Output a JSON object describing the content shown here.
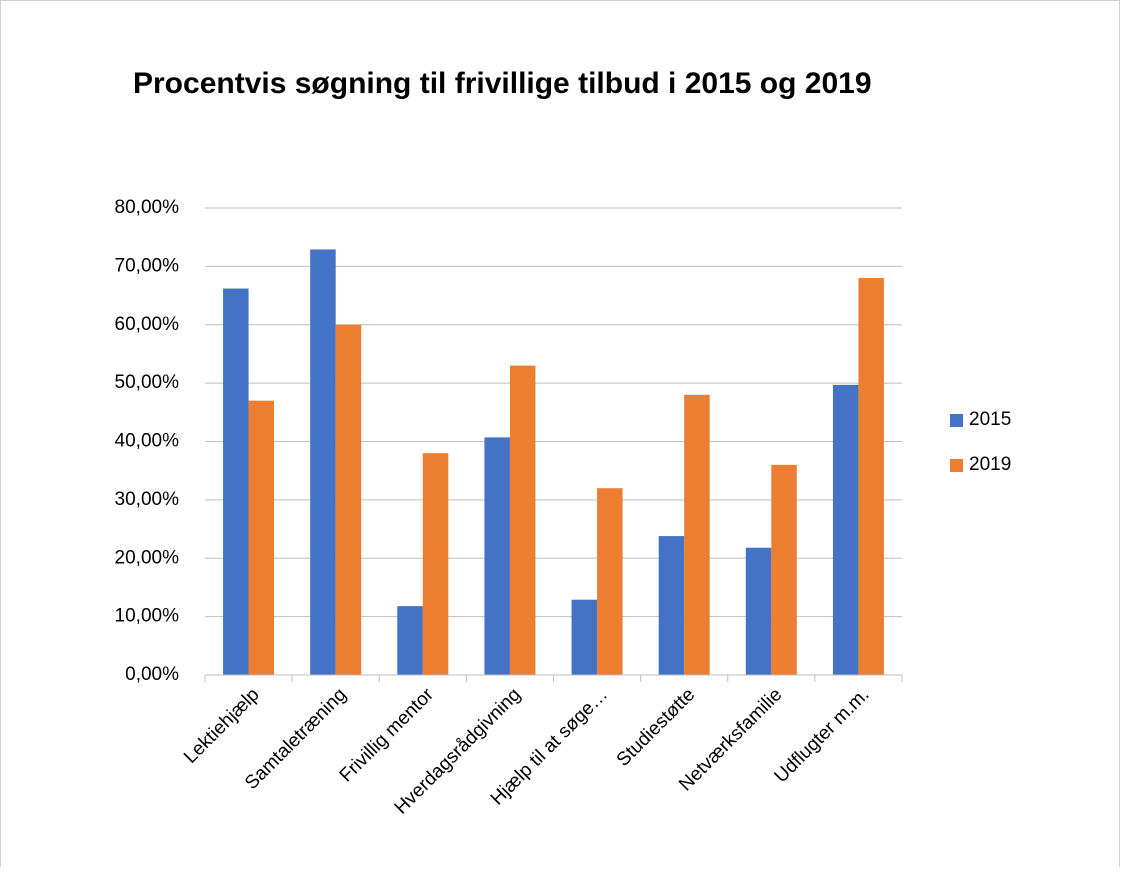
{
  "chart_data": {
    "type": "bar",
    "title": "Procentvis søgning til frivillige tilbud i 2015 og 2019",
    "categories": [
      "Lektiehjælp",
      "Samtaletræning",
      "Frivillig mentor",
      "Hverdagsrådgivning",
      "Hjælp til at søge…",
      "Studiestøtte",
      "Netværksfamilie",
      "Udflugter m.m."
    ],
    "series": [
      {
        "name": "2015",
        "color": "#4472c4",
        "values": [
          66.2,
          72.9,
          11.8,
          40.7,
          12.9,
          23.8,
          21.8,
          49.7
        ]
      },
      {
        "name": "2019",
        "color": "#ed7d31",
        "values": [
          47,
          60,
          38,
          53,
          32,
          48,
          36,
          68
        ]
      }
    ],
    "ylim": [
      0,
      80
    ],
    "yticks": [
      {
        "value": 0,
        "label": "0,00%"
      },
      {
        "value": 10,
        "label": "10,00%"
      },
      {
        "value": 20,
        "label": "20,00%"
      },
      {
        "value": 30,
        "label": "30,00%"
      },
      {
        "value": 40,
        "label": "40,00%"
      },
      {
        "value": 50,
        "label": "50,00%"
      },
      {
        "value": 60,
        "label": "60,00%"
      },
      {
        "value": 70,
        "label": "70,00%"
      },
      {
        "value": 80,
        "label": "80,00%"
      }
    ],
    "grid": true,
    "legend": "right"
  }
}
